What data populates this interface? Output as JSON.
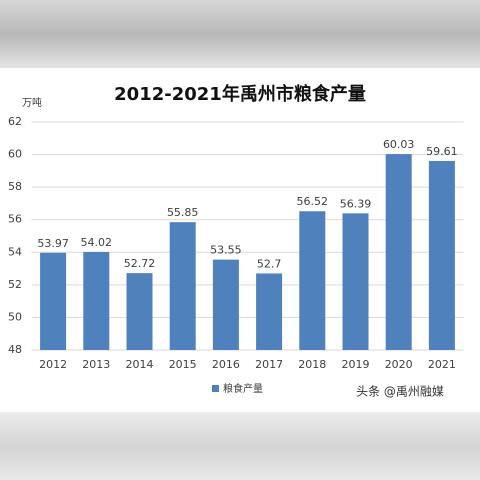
{
  "chart_data": {
    "type": "bar",
    "title": "2012-2021年禹州市粮食产量",
    "y_label": "万吨",
    "categories": [
      "2012",
      "2013",
      "2014",
      "2015",
      "2016",
      "2017",
      "2018",
      "2019",
      "2020",
      "2021"
    ],
    "series": [
      {
        "name": "粮食产量",
        "color": "#4f81bd",
        "values": [
          53.97,
          54.02,
          52.72,
          55.85,
          53.55,
          52.7,
          56.52,
          56.39,
          60.03,
          59.61
        ]
      }
    ],
    "ylim": [
      48,
      62
    ],
    "yticks": [
      48,
      50,
      52,
      54,
      56,
      58,
      60,
      62
    ],
    "grid": true,
    "legend": "bottom",
    "annotation": "头条 @禹州融媒"
  }
}
